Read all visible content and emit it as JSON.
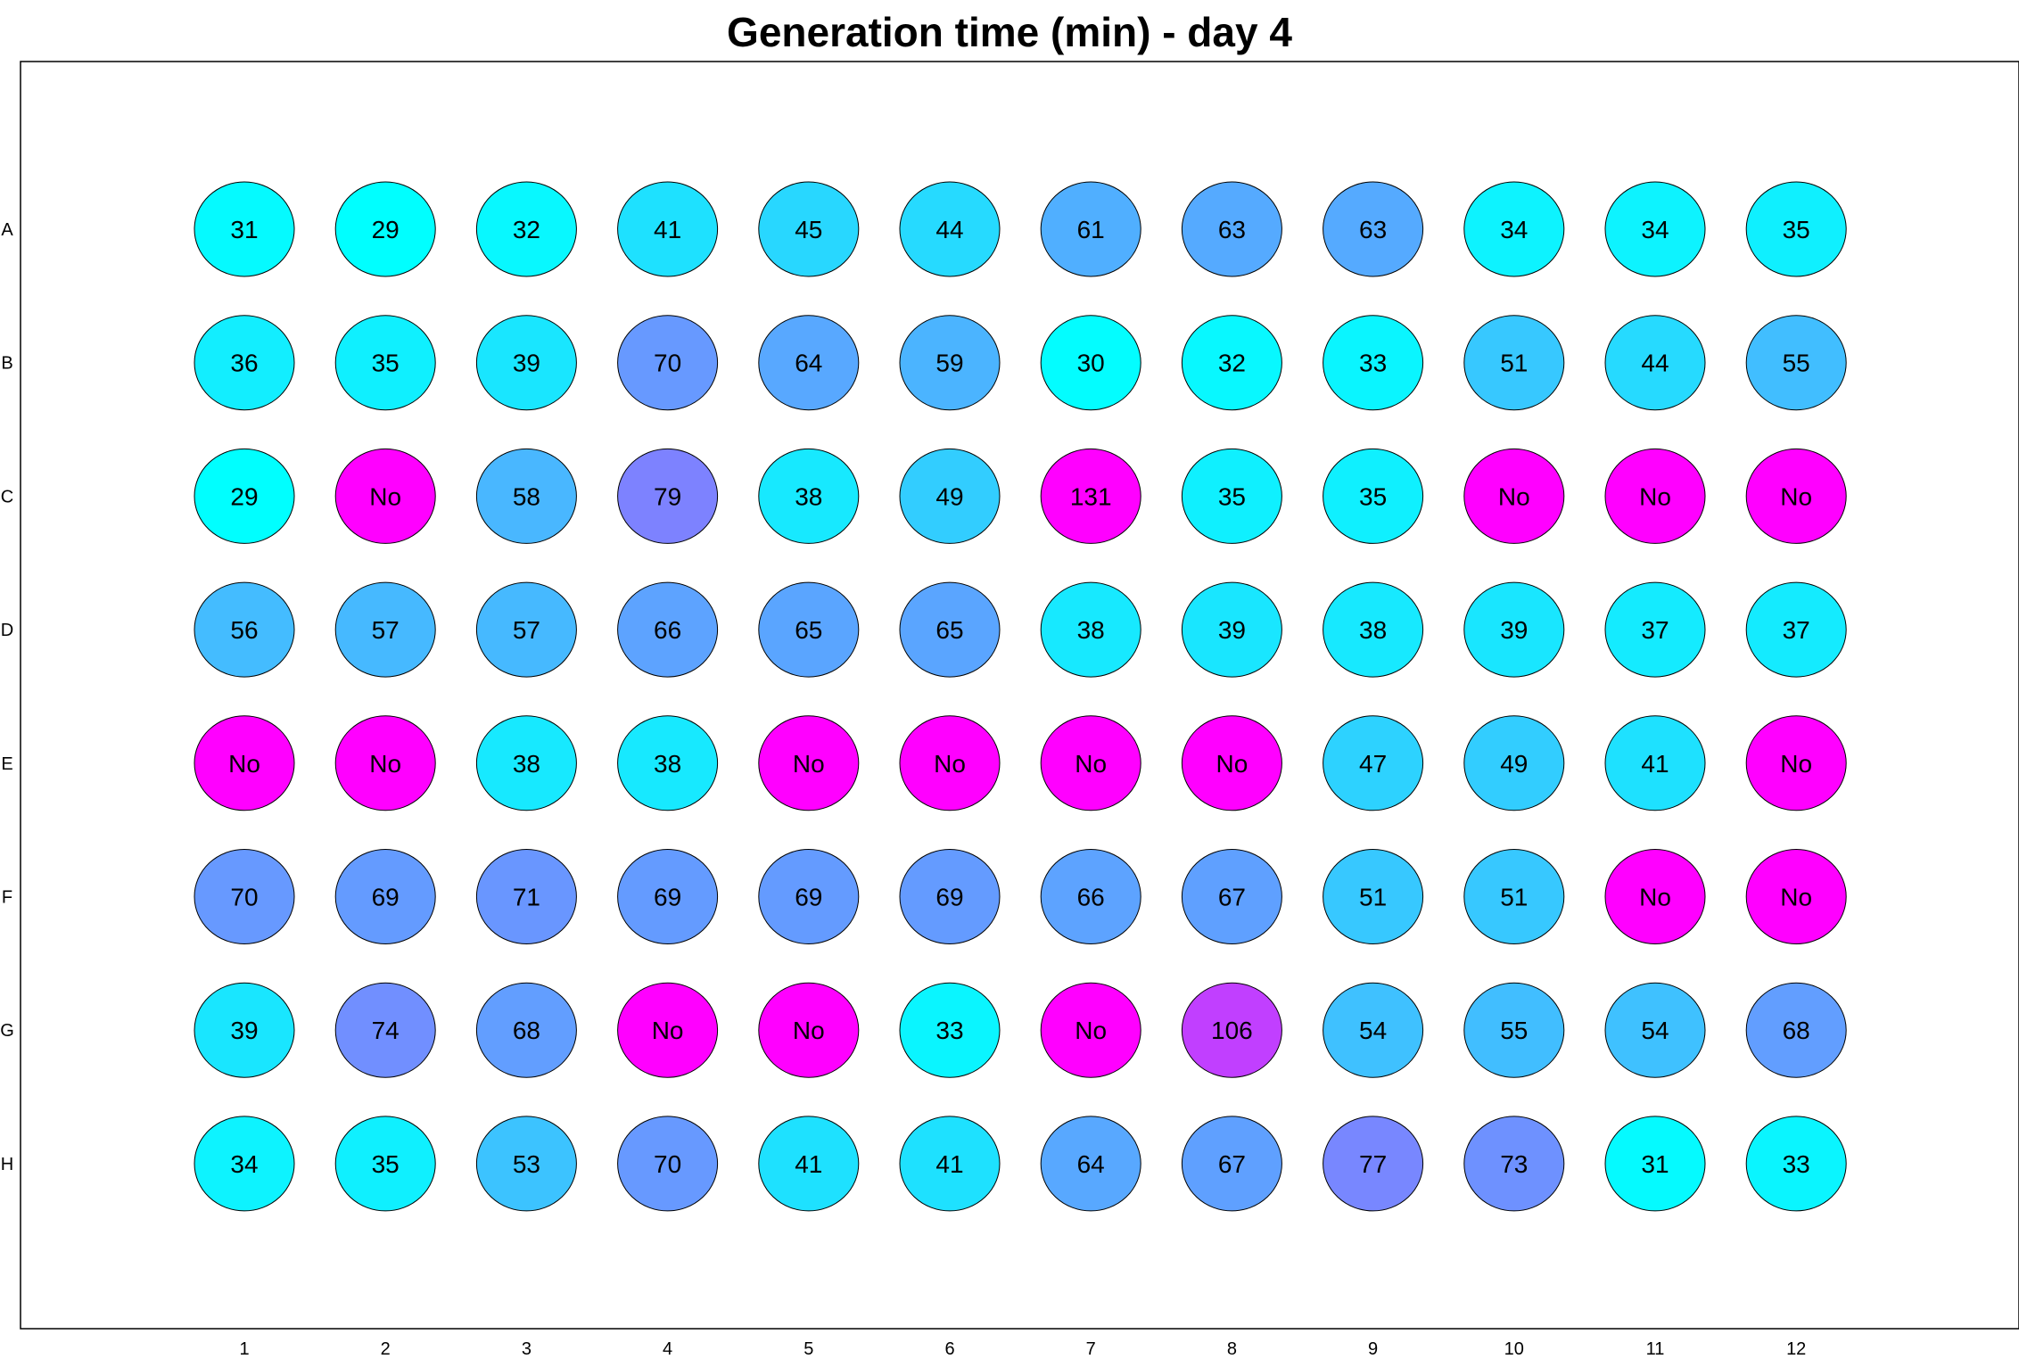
{
  "chart_data": {
    "type": "heatmap",
    "title": "Generation time (min) - day 4",
    "rows": [
      "A",
      "B",
      "C",
      "D",
      "E",
      "F",
      "G",
      "H"
    ],
    "columns": [
      "1",
      "2",
      "3",
      "4",
      "5",
      "6",
      "7",
      "8",
      "9",
      "10",
      "11",
      "12"
    ],
    "values": [
      [
        "31",
        "29",
        "32",
        "41",
        "45",
        "44",
        "61",
        "63",
        "63",
        "34",
        "34",
        "35"
      ],
      [
        "36",
        "35",
        "39",
        "70",
        "64",
        "59",
        "30",
        "32",
        "33",
        "51",
        "44",
        "55"
      ],
      [
        "29",
        "No",
        "58",
        "79",
        "38",
        "49",
        "131",
        "35",
        "35",
        "No",
        "No",
        "No"
      ],
      [
        "56",
        "57",
        "57",
        "66",
        "65",
        "65",
        "38",
        "39",
        "38",
        "39",
        "37",
        "37"
      ],
      [
        "No",
        "No",
        "38",
        "38",
        "No",
        "No",
        "No",
        "No",
        "47",
        "49",
        "41",
        "No"
      ],
      [
        "70",
        "69",
        "71",
        "69",
        "69",
        "69",
        "66",
        "67",
        "51",
        "51",
        "No",
        "No"
      ],
      [
        "39",
        "74",
        "68",
        "No",
        "No",
        "33",
        "No",
        "106",
        "54",
        "55",
        "54",
        "68"
      ],
      [
        "34",
        "35",
        "53",
        "70",
        "41",
        "41",
        "64",
        "67",
        "77",
        "73",
        "31",
        "33"
      ]
    ],
    "colormap": {
      "low_color": "#00ffff",
      "high_color": "#ff00ff",
      "missing_color": "#ff00ff",
      "missing_label": "No"
    },
    "grid": false,
    "legend": "none"
  }
}
